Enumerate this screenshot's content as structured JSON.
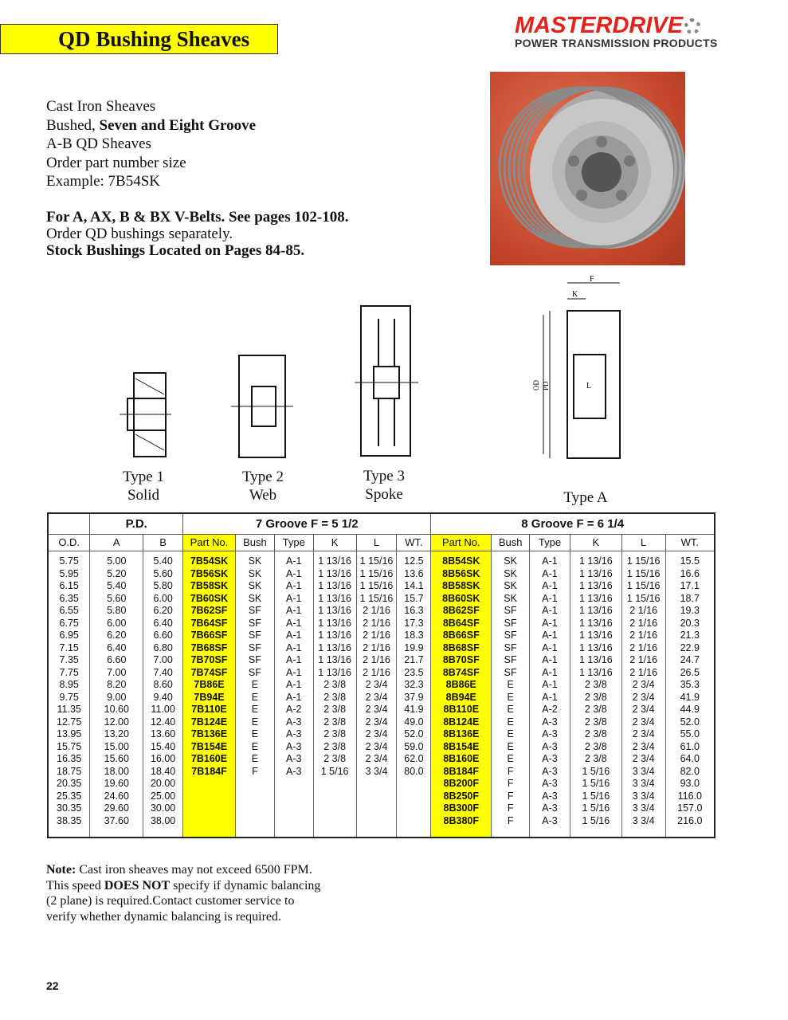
{
  "title": "QD Bushing Sheaves",
  "logo": {
    "brand": "MASTERDRIVE",
    "sub": "POWER TRANSMISSION PRODUCTS"
  },
  "intro": {
    "l1": "Cast Iron Sheaves",
    "l2a": "Bushed, ",
    "l2b": "Seven and Eight Groove",
    "l3": "A-B QD Sheaves",
    "l4": "Order part number size",
    "l5": "Example:  7B54SK"
  },
  "intro2": {
    "l1": "For A, AX, B & BX V-Belts. See pages 102-108.",
    "l2": "Order QD bushings separately.",
    "l3": "Stock Bushings Located on Pages 84-85."
  },
  "types": [
    {
      "name": "Type 1",
      "desc": "Solid"
    },
    {
      "name": "Type 2",
      "desc": "Web"
    },
    {
      "name": "Type 3",
      "desc": "Spoke"
    },
    {
      "name": "Type A",
      "desc": ""
    }
  ],
  "dims": {
    "F": "F",
    "K": "K",
    "L": "L",
    "OD": "OD",
    "PD": "PD"
  },
  "table": {
    "pd": "P.D.",
    "g7": "7 Groove F = 5 1/2",
    "g8": "8 Groove  F = 6 1/4",
    "cols": [
      "O.D.",
      "A",
      "B",
      "Part No.",
      "Bush",
      "Type",
      "K",
      "L",
      "WT.",
      "Part No.",
      "Bush",
      "Type",
      "K",
      "L",
      "WT."
    ],
    "rows": [
      [
        "5.75",
        "5.00",
        "5.40",
        "7B54SK",
        "SK",
        "A-1",
        "1 13/16",
        "1 15/16",
        "12.5",
        "8B54SK",
        "SK",
        "A-1",
        "1 13/16",
        "1 15/16",
        "15.5"
      ],
      [
        "5.95",
        "5.20",
        "5.60",
        "7B56SK",
        "SK",
        "A-1",
        "1 13/16",
        "1 15/16",
        "13.6",
        "8B56SK",
        "SK",
        "A-1",
        "1 13/16",
        "1 15/16",
        "16.6"
      ],
      [
        "6.15",
        "5.40",
        "5.80",
        "7B58SK",
        "SK",
        "A-1",
        "1 13/16",
        "1 15/16",
        "14.1",
        "8B58SK",
        "SK",
        "A-1",
        "1 13/16",
        "1 15/16",
        "17.1"
      ],
      [
        "6.35",
        "5.60",
        "6.00",
        "7B60SK",
        "SK",
        "A-1",
        "1 13/16",
        "1 15/16",
        "15.7",
        "8B60SK",
        "SK",
        "A-1",
        "1 13/16",
        "1 15/16",
        "18.7"
      ],
      [
        "6.55",
        "5.80",
        "6.20",
        "7B62SF",
        "SF",
        "A-1",
        "1 13/16",
        "2 1/16",
        "16.3",
        "8B62SF",
        "SF",
        "A-1",
        "1 13/16",
        "2 1/16",
        "19.3"
      ],
      [
        "6.75",
        "6.00",
        "6.40",
        "7B64SF",
        "SF",
        "A-1",
        "1 13/16",
        "2 1/16",
        "17.3",
        "8B64SF",
        "SF",
        "A-1",
        "1 13/16",
        "2 1/16",
        "20.3"
      ],
      [
        "6.95",
        "6.20",
        "6.60",
        "7B66SF",
        "SF",
        "A-1",
        "1 13/16",
        "2 1/16",
        "18.3",
        "8B66SF",
        "SF",
        "A-1",
        "1 13/16",
        "2 1/16",
        "21.3"
      ],
      [
        "7.15",
        "6.40",
        "6.80",
        "7B68SF",
        "SF",
        "A-1",
        "1 13/16",
        "2 1/16",
        "19.9",
        "8B68SF",
        "SF",
        "A-1",
        "1 13/16",
        "2 1/16",
        "22.9"
      ],
      [
        "7.35",
        "6.60",
        "7.00",
        "7B70SF",
        "SF",
        "A-1",
        "1 13/16",
        "2 1/16",
        "21.7",
        "8B70SF",
        "SF",
        "A-1",
        "1 13/16",
        "2 1/16",
        "24.7"
      ],
      [
        "7.75",
        "7.00",
        "7.40",
        "7B74SF",
        "SF",
        "A-1",
        "1 13/16",
        "2 1/16",
        "23.5",
        "8B74SF",
        "SF",
        "A-1",
        "1 13/16",
        "2 1/16",
        "26.5"
      ],
      [
        "8.95",
        "8.20",
        "8.60",
        "7B86E",
        "E",
        "A-1",
        "2 3/8",
        "2 3/4",
        "32.3",
        "8B86E",
        "E",
        "A-1",
        "2 3/8",
        "2 3/4",
        "35.3"
      ],
      [
        "9.75",
        "9.00",
        "9.40",
        "7B94E",
        "E",
        "A-1",
        "2 3/8",
        "2 3/4",
        "37.9",
        "8B94E",
        "E",
        "A-1",
        "2 3/8",
        "2 3/4",
        "41.9"
      ],
      [
        "11.35",
        "10.60",
        "11.00",
        "7B110E",
        "E",
        "A-2",
        "2 3/8",
        "2 3/4",
        "41.9",
        "8B110E",
        "E",
        "A-2",
        "2 3/8",
        "2 3/4",
        "44.9"
      ],
      [
        "12.75",
        "12.00",
        "12.40",
        "7B124E",
        "E",
        "A-3",
        "2 3/8",
        "2 3/4",
        "49.0",
        "8B124E",
        "E",
        "A-3",
        "2 3/8",
        "2 3/4",
        "52.0"
      ],
      [
        "13.95",
        "13.20",
        "13.60",
        "7B136E",
        "E",
        "A-3",
        "2 3/8",
        "2 3/4",
        "52.0",
        "8B136E",
        "E",
        "A-3",
        "2 3/8",
        "2 3/4",
        "55.0"
      ],
      [
        "15.75",
        "15.00",
        "15.40",
        "7B154E",
        "E",
        "A-3",
        "2 3/8",
        "2 3/4",
        "59.0",
        "8B154E",
        "E",
        "A-3",
        "2 3/8",
        "2 3/4",
        "61.0"
      ],
      [
        "16.35",
        "15.60",
        "16.00",
        "7B160E",
        "E",
        "A-3",
        "2 3/8",
        "2 3/4",
        "62.0",
        "8B160E",
        "E",
        "A-3",
        "2 3/8",
        "2 3/4",
        "64.0"
      ],
      [
        "18.75",
        "18.00",
        "18.40",
        "7B184F",
        "F",
        "A-3",
        "1 5/16",
        "3 3/4",
        "80.0",
        "8B184F",
        "F",
        "A-3",
        "1 5/16",
        "3 3/4",
        "82.0"
      ],
      [
        "20.35",
        "19.60",
        "20.00",
        "",
        "",
        "",
        "",
        "",
        "",
        "8B200F",
        "F",
        "A-3",
        "1 5/16",
        "3 3/4",
        "93.0"
      ],
      [
        "25.35",
        "24.60",
        "25.00",
        "",
        "",
        "",
        "",
        "",
        "",
        "8B250F",
        "F",
        "A-3",
        "1 5/16",
        "3 3/4",
        "116.0"
      ],
      [
        "30.35",
        "29.60",
        "30.00",
        "",
        "",
        "",
        "",
        "",
        "",
        "8B300F",
        "F",
        "A-3",
        "1 5/16",
        "3 3/4",
        "157.0"
      ],
      [
        "38.35",
        "37.60",
        "38.00",
        "",
        "",
        "",
        "",
        "",
        "",
        "8B380F",
        "F",
        "A-3",
        "1 5/16",
        "3 3/4",
        "216.0"
      ]
    ]
  },
  "note": {
    "bold": "Note:",
    "l1": " Cast iron sheaves may not exceed 6500 FPM.",
    "l2a": "This speed ",
    "l2b": "DOES NOT",
    "l2c": " specify if dynamic balancing",
    "l3": "(2 plane) is required.Contact customer service to",
    "l4": "verify whether dynamic balancing is required."
  },
  "page_number": "22",
  "colors": {
    "highlight": "#ffff00",
    "brand": "#e32219"
  }
}
